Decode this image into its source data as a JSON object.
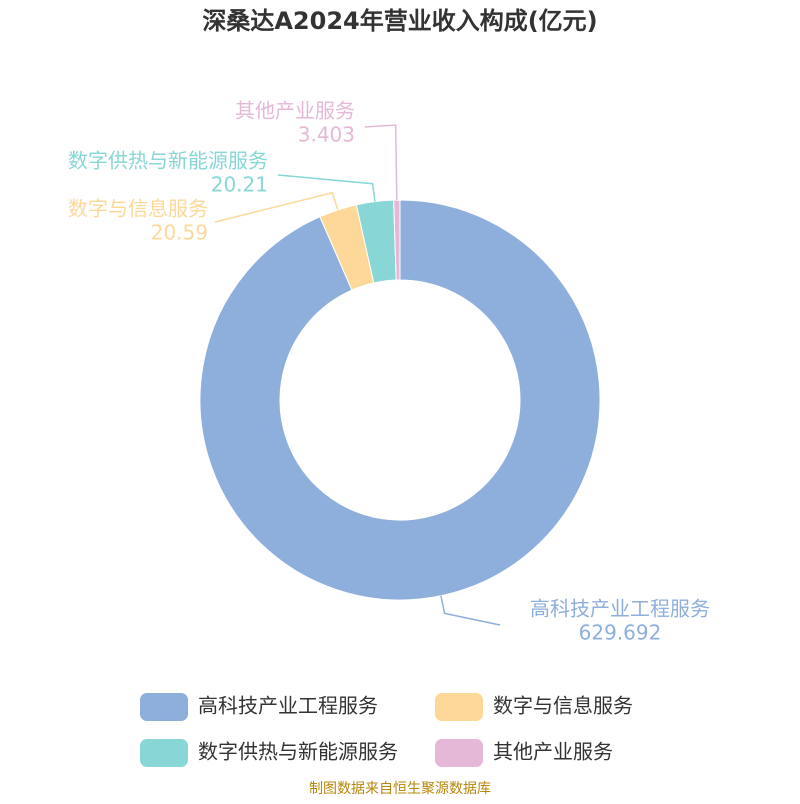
{
  "chart_data": {
    "type": "donut",
    "title": "深桑达A2024年营业收入构成(亿元)",
    "categories": [
      "高科技产业工程服务",
      "数字与信息服务",
      "数字供热与新能源服务",
      "其他产业服务"
    ],
    "values": [
      629.692,
      20.59,
      20.21,
      3.403
    ],
    "colors": [
      "#8eaedb",
      "#fdd898",
      "#88d6d6",
      "#e6b8d8"
    ],
    "source": "制图数据来自恒生聚源数据库"
  }
}
